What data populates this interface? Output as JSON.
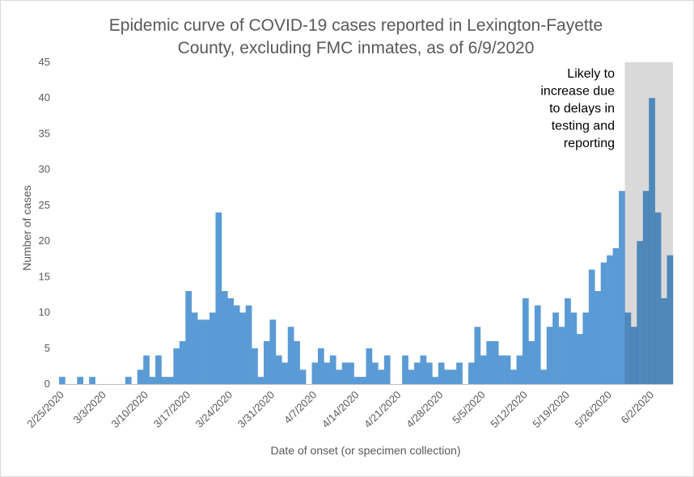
{
  "chart_data": {
    "type": "bar",
    "title_line1": "Epidemic curve of COVID-19 cases reported in Lexington-Fayette",
    "title_line2": "County, excluding FMC inmates, as of 6/9/2020",
    "xlabel": "Date of onset (or specimen collection)",
    "ylabel": "Number of cases",
    "ylim": [
      0,
      45
    ],
    "yticks": [
      0,
      5,
      10,
      15,
      20,
      25,
      30,
      35,
      40,
      45
    ],
    "grid": false,
    "x_tick_labels": [
      "2/25/2020",
      "3/3/2020",
      "3/10/2020",
      "3/17/2020",
      "3/24/2020",
      "3/31/2020",
      "4/7/2020",
      "4/14/2020",
      "4/21/2020",
      "4/28/2020",
      "5/5/2020",
      "5/12/2020",
      "5/19/2020",
      "5/26/2020",
      "6/2/2020"
    ],
    "start_date": "2/25/2020",
    "values": [
      1,
      0,
      0,
      1,
      0,
      1,
      0,
      0,
      0,
      0,
      0,
      1,
      0,
      2,
      4,
      1,
      4,
      1,
      1,
      5,
      6,
      13,
      10,
      9,
      9,
      10,
      24,
      13,
      12,
      11,
      10,
      11,
      5,
      1,
      6,
      9,
      4,
      3,
      8,
      6,
      2,
      0,
      3,
      5,
      3,
      4,
      2,
      3,
      3,
      1,
      1,
      5,
      3,
      2,
      4,
      0,
      0,
      4,
      2,
      3,
      4,
      3,
      1,
      3,
      2,
      2,
      3,
      0,
      3,
      8,
      4,
      6,
      6,
      4,
      4,
      2,
      4,
      12,
      6,
      11,
      2,
      8,
      10,
      8,
      12,
      10,
      7,
      10,
      16,
      13,
      17,
      18,
      19,
      27,
      10,
      8,
      20,
      27,
      40,
      24,
      12,
      18
    ],
    "bar_color": "#5b9bd5",
    "shaded_region": {
      "start_index": 94,
      "color": "#d9d9d9",
      "annotation_lines": [
        "Likely to",
        "increase due",
        "to delays in",
        "testing and",
        "reporting"
      ]
    }
  }
}
